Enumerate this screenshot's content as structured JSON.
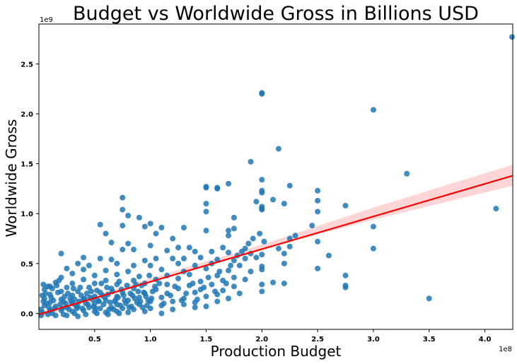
{
  "chart_data": {
    "type": "scatter",
    "title": "Budget vs Worldwide Gross in Billions USD",
    "xlabel": "Production Budget",
    "ylabel": "Worldwide Gross",
    "x_offset_label": "1e8",
    "y_offset_label": "1e9",
    "x_units": "1e8 USD",
    "y_units": "1e9 USD",
    "xlim": [
      0.0,
      4.25
    ],
    "ylim": [
      -0.16,
      2.9
    ],
    "xticks": [
      0.5,
      1.0,
      1.5,
      2.0,
      2.5,
      3.0,
      3.5,
      4.0
    ],
    "xtick_labels": [
      "0.5",
      "1.0",
      "1.5",
      "2.0",
      "2.5",
      "3.0",
      "3.5",
      "4.0"
    ],
    "yticks": [
      0.0,
      0.5,
      1.0,
      1.5,
      2.0,
      2.5
    ],
    "ytick_labels": [
      "0.0",
      "0.5",
      "1.0",
      "1.5",
      "2.0",
      "2.5"
    ],
    "grid": false,
    "point_color": "#1f77b4",
    "regression_color": "#ff0000",
    "ci_color": "#ffb3b3",
    "regression_line": {
      "x": [
        0.0,
        4.25
      ],
      "y": [
        -0.01,
        1.38
      ]
    },
    "ci_band": {
      "x": [
        0.0,
        1.0,
        2.0,
        3.0,
        4.25
      ],
      "y_low": [
        -0.04,
        0.31,
        0.64,
        0.94,
        1.28
      ],
      "y_high": [
        0.02,
        0.35,
        0.69,
        1.06,
        1.49
      ]
    },
    "points": [
      [
        4.25,
        2.77
      ],
      [
        2.0,
        2.21
      ],
      [
        2.0,
        2.2
      ],
      [
        3.0,
        2.04
      ],
      [
        2.15,
        1.65
      ],
      [
        1.9,
        1.52
      ],
      [
        3.3,
        1.4
      ],
      [
        2.0,
        1.34
      ],
      [
        1.7,
        1.3
      ],
      [
        2.25,
        1.28
      ],
      [
        1.5,
        1.27
      ],
      [
        1.5,
        1.26
      ],
      [
        1.6,
        1.25
      ],
      [
        1.6,
        1.26
      ],
      [
        2.5,
        1.23
      ],
      [
        2.0,
        1.23
      ],
      [
        2.0,
        1.21
      ],
      [
        0.75,
        1.16
      ],
      [
        2.1,
        1.14
      ],
      [
        1.95,
        1.12
      ],
      [
        2.5,
        1.13
      ],
      [
        2.2,
        1.1
      ],
      [
        2.75,
        1.08
      ],
      [
        1.5,
        1.1
      ],
      [
        2.0,
        1.07
      ],
      [
        2.0,
        1.05
      ],
      [
        2.0,
        1.04
      ],
      [
        4.1,
        1.05
      ],
      [
        0.75,
        1.04
      ],
      [
        1.5,
        1.02
      ],
      [
        2.5,
        1.02
      ],
      [
        0.8,
        0.98
      ],
      [
        0.9,
        0.96
      ],
      [
        1.75,
        0.96
      ],
      [
        1.0,
        0.9
      ],
      [
        0.55,
        0.89
      ],
      [
        0.75,
        0.88
      ],
      [
        0.95,
        0.87
      ],
      [
        1.1,
        0.86
      ],
      [
        1.3,
        0.86
      ],
      [
        1.5,
        0.83
      ],
      [
        1.7,
        0.83
      ],
      [
        1.75,
        0.85
      ],
      [
        0.6,
        0.8
      ],
      [
        1.05,
        0.8
      ],
      [
        1.7,
        0.78
      ],
      [
        2.3,
        0.78
      ],
      [
        2.45,
        0.88
      ],
      [
        3.0,
        0.87
      ],
      [
        1.2,
        0.75
      ],
      [
        0.65,
        0.71
      ],
      [
        0.8,
        0.7
      ],
      [
        2.25,
        0.75
      ],
      [
        2.5,
        0.72
      ],
      [
        1.0,
        0.68
      ],
      [
        1.25,
        0.66
      ],
      [
        1.35,
        0.66
      ],
      [
        1.65,
        0.66
      ],
      [
        1.85,
        0.65
      ],
      [
        2.15,
        0.65
      ],
      [
        2.25,
        0.67
      ],
      [
        3.0,
        0.65
      ],
      [
        0.75,
        0.64
      ],
      [
        0.85,
        0.64
      ],
      [
        1.15,
        0.63
      ],
      [
        1.4,
        0.62
      ],
      [
        1.55,
        0.62
      ],
      [
        1.7,
        0.61
      ],
      [
        1.9,
        0.6
      ],
      [
        2.0,
        0.59
      ],
      [
        2.2,
        0.6
      ],
      [
        2.6,
        0.58
      ],
      [
        0.2,
        0.6
      ],
      [
        0.4,
        0.56
      ],
      [
        0.55,
        0.55
      ],
      [
        0.65,
        0.54
      ],
      [
        0.95,
        0.53
      ],
      [
        1.05,
        0.55
      ],
      [
        1.2,
        0.55
      ],
      [
        1.3,
        0.55
      ],
      [
        1.45,
        0.56
      ],
      [
        1.6,
        0.54
      ],
      [
        1.75,
        0.53
      ],
      [
        1.85,
        0.55
      ],
      [
        1.95,
        0.56
      ],
      [
        0.35,
        0.5
      ],
      [
        0.45,
        0.48
      ],
      [
        0.7,
        0.5
      ],
      [
        0.85,
        0.48
      ],
      [
        1.0,
        0.48
      ],
      [
        1.25,
        0.5
      ],
      [
        1.4,
        0.48
      ],
      [
        1.55,
        0.5
      ],
      [
        1.8,
        0.48
      ],
      [
        2.0,
        0.47
      ],
      [
        2.2,
        0.5
      ],
      [
        0.25,
        0.45
      ],
      [
        0.4,
        0.44
      ],
      [
        0.6,
        0.43
      ],
      [
        0.8,
        0.42
      ],
      [
        1.1,
        0.44
      ],
      [
        1.3,
        0.42
      ],
      [
        1.5,
        0.45
      ],
      [
        1.7,
        0.43
      ],
      [
        1.9,
        0.42
      ],
      [
        2.0,
        0.44
      ],
      [
        2.5,
        0.45
      ],
      [
        0.3,
        0.4
      ],
      [
        0.5,
        0.38
      ],
      [
        0.7,
        0.39
      ],
      [
        0.9,
        0.37
      ],
      [
        1.15,
        0.38
      ],
      [
        1.35,
        0.39
      ],
      [
        1.6,
        0.38
      ],
      [
        1.75,
        0.36
      ],
      [
        2.75,
        0.38
      ],
      [
        0.2,
        0.36
      ],
      [
        0.4,
        0.34
      ],
      [
        0.6,
        0.33
      ],
      [
        0.85,
        0.33
      ],
      [
        1.05,
        0.34
      ],
      [
        1.25,
        0.35
      ],
      [
        1.45,
        0.32
      ],
      [
        1.65,
        0.33
      ],
      [
        1.85,
        0.34
      ],
      [
        2.1,
        0.31
      ],
      [
        2.2,
        0.3
      ],
      [
        0.15,
        0.31
      ],
      [
        0.3,
        0.3
      ],
      [
        0.5,
        0.3
      ],
      [
        0.7,
        0.29
      ],
      [
        0.95,
        0.3
      ],
      [
        1.15,
        0.29
      ],
      [
        1.35,
        0.28
      ],
      [
        1.55,
        0.29
      ],
      [
        1.75,
        0.27
      ],
      [
        2.0,
        0.29
      ],
      [
        2.75,
        0.28
      ],
      [
        0.1,
        0.27
      ],
      [
        0.25,
        0.26
      ],
      [
        0.45,
        0.26
      ],
      [
        0.65,
        0.25
      ],
      [
        0.85,
        0.25
      ],
      [
        1.05,
        0.24
      ],
      [
        1.25,
        0.25
      ],
      [
        1.45,
        0.24
      ],
      [
        1.65,
        0.23
      ],
      [
        2.0,
        0.22
      ],
      [
        2.75,
        0.26
      ],
      [
        0.05,
        0.24
      ],
      [
        0.2,
        0.22
      ],
      [
        0.35,
        0.22
      ],
      [
        0.55,
        0.21
      ],
      [
        0.75,
        0.21
      ],
      [
        0.95,
        0.2
      ],
      [
        1.15,
        0.2
      ],
      [
        1.4,
        0.21
      ],
      [
        1.6,
        0.19
      ],
      [
        1.8,
        0.2
      ],
      [
        0.1,
        0.19
      ],
      [
        0.3,
        0.18
      ],
      [
        0.5,
        0.17
      ],
      [
        0.7,
        0.17
      ],
      [
        0.9,
        0.16
      ],
      [
        1.1,
        0.16
      ],
      [
        1.3,
        0.15
      ],
      [
        1.5,
        0.17
      ],
      [
        1.7,
        0.15
      ],
      [
        3.5,
        0.15
      ],
      [
        0.05,
        0.15
      ],
      [
        0.2,
        0.14
      ],
      [
        0.4,
        0.14
      ],
      [
        0.6,
        0.13
      ],
      [
        0.8,
        0.13
      ],
      [
        1.0,
        0.12
      ],
      [
        1.2,
        0.12
      ],
      [
        1.4,
        0.11
      ],
      [
        1.6,
        0.12
      ],
      [
        0.1,
        0.11
      ],
      [
        0.3,
        0.1
      ],
      [
        0.5,
        0.1
      ],
      [
        0.7,
        0.09
      ],
      [
        0.9,
        0.09
      ],
      [
        1.1,
        0.08
      ],
      [
        1.3,
        0.09
      ],
      [
        1.5,
        0.07
      ],
      [
        0.05,
        0.08
      ],
      [
        0.15,
        0.07
      ],
      [
        0.25,
        0.06
      ],
      [
        0.35,
        0.07
      ],
      [
        0.45,
        0.06
      ],
      [
        0.55,
        0.05
      ],
      [
        0.65,
        0.06
      ],
      [
        0.75,
        0.05
      ],
      [
        0.85,
        0.04
      ],
      [
        1.0,
        0.05
      ],
      [
        1.2,
        0.04
      ],
      [
        1.4,
        0.06
      ],
      [
        0.02,
        0.04
      ],
      [
        0.1,
        0.03
      ],
      [
        0.2,
        0.03
      ],
      [
        0.3,
        0.02
      ],
      [
        0.4,
        0.03
      ],
      [
        0.5,
        0.02
      ],
      [
        0.6,
        0.01
      ],
      [
        0.7,
        0.02
      ],
      [
        0.8,
        0.01
      ],
      [
        0.95,
        0.02
      ],
      [
        1.1,
        0.0
      ],
      [
        0.03,
        0.01
      ],
      [
        0.12,
        0.0
      ],
      [
        0.22,
        -0.01
      ],
      [
        0.32,
        0.0
      ],
      [
        0.42,
        -0.01
      ],
      [
        0.52,
        0.0
      ],
      [
        0.62,
        -0.01
      ],
      [
        0.72,
        0.0
      ],
      [
        0.02,
        -0.02
      ],
      [
        0.08,
        -0.01
      ],
      [
        0.15,
        -0.02
      ],
      [
        0.25,
        -0.02
      ],
      [
        0.35,
        -0.03
      ],
      [
        0.04,
        0.12
      ],
      [
        0.06,
        0.2
      ],
      [
        0.08,
        0.27
      ],
      [
        0.12,
        0.25
      ],
      [
        0.18,
        0.33
      ],
      [
        0.22,
        0.12
      ],
      [
        0.28,
        0.15
      ],
      [
        0.33,
        0.08
      ],
      [
        0.38,
        0.18
      ],
      [
        0.42,
        0.1
      ],
      [
        0.48,
        0.14
      ],
      [
        0.52,
        0.23
      ],
      [
        0.58,
        0.09
      ],
      [
        0.62,
        0.19
      ],
      [
        0.68,
        0.12
      ],
      [
        0.72,
        0.32
      ],
      [
        0.78,
        0.1
      ],
      [
        0.82,
        0.2
      ],
      [
        0.88,
        0.11
      ],
      [
        0.92,
        0.28
      ],
      [
        0.98,
        0.13
      ],
      [
        1.02,
        0.22
      ],
      [
        1.08,
        0.3
      ],
      [
        1.12,
        0.1
      ],
      [
        1.18,
        0.18
      ],
      [
        1.22,
        0.27
      ],
      [
        1.28,
        0.13
      ],
      [
        1.32,
        0.2
      ],
      [
        1.38,
        0.3
      ],
      [
        1.42,
        0.14
      ],
      [
        1.48,
        0.26
      ],
      [
        1.52,
        0.36
      ],
      [
        1.58,
        0.22
      ],
      [
        1.62,
        0.42
      ],
      [
        1.68,
        0.3
      ],
      [
        1.72,
        0.48
      ],
      [
        1.78,
        0.58
      ],
      [
        1.82,
        0.62
      ],
      [
        1.88,
        0.7
      ],
      [
        1.92,
        0.75
      ],
      [
        1.98,
        0.8
      ],
      [
        2.02,
        0.72
      ],
      [
        0.03,
        0.18
      ],
      [
        0.07,
        0.1
      ],
      [
        0.11,
        0.16
      ],
      [
        0.14,
        0.05
      ],
      [
        0.17,
        0.21
      ],
      [
        0.19,
        0.09
      ],
      [
        0.23,
        0.17
      ],
      [
        0.27,
        0.04
      ],
      [
        0.29,
        0.12
      ],
      [
        0.31,
        0.25
      ],
      [
        0.36,
        0.12
      ],
      [
        0.39,
        0.05
      ],
      [
        0.43,
        0.2
      ],
      [
        0.46,
        0.16
      ],
      [
        0.49,
        0.07
      ],
      [
        0.53,
        0.13
      ],
      [
        0.56,
        0.3
      ],
      [
        0.59,
        0.16
      ],
      [
        0.63,
        0.04
      ],
      [
        0.66,
        0.22
      ],
      [
        0.69,
        0.14
      ],
      [
        0.73,
        0.08
      ],
      [
        0.76,
        0.18
      ],
      [
        0.79,
        0.28
      ],
      [
        0.83,
        0.07
      ],
      [
        0.86,
        0.15
      ],
      [
        0.89,
        0.22
      ],
      [
        0.93,
        0.06
      ],
      [
        0.96,
        0.17
      ],
      [
        0.99,
        0.38
      ],
      [
        0.04,
        0.29
      ],
      [
        0.09,
        0.06
      ],
      [
        0.13,
        0.13
      ],
      [
        0.16,
        0.28
      ],
      [
        0.21,
        0.05
      ],
      [
        0.24,
        0.1
      ],
      [
        0.26,
        0.2
      ],
      [
        0.32,
        0.14
      ],
      [
        0.34,
        0.05
      ],
      [
        0.37,
        0.26
      ],
      [
        0.41,
        0.15
      ],
      [
        0.44,
        0.09
      ],
      [
        0.47,
        0.22
      ],
      [
        0.51,
        0.05
      ],
      [
        0.54,
        0.12
      ],
      [
        0.57,
        0.18
      ],
      [
        0.61,
        0.26
      ],
      [
        0.64,
        0.11
      ],
      [
        0.67,
        0.04
      ],
      [
        0.71,
        0.16
      ],
      [
        0.74,
        0.24
      ],
      [
        0.77,
        0.13
      ],
      [
        0.81,
        0.06
      ],
      [
        0.84,
        0.18
      ],
      [
        0.87,
        0.29
      ],
      [
        0.91,
        0.12
      ],
      [
        0.94,
        0.21
      ],
      [
        0.97,
        0.08
      ],
      [
        1.01,
        0.15
      ],
      [
        1.04,
        0.27
      ]
    ]
  }
}
